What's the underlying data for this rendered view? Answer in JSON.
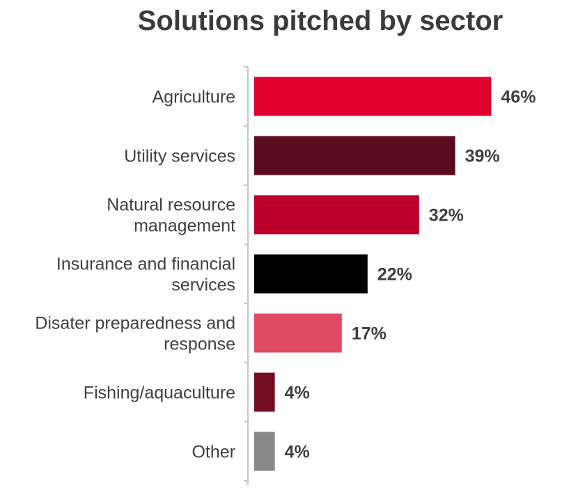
{
  "chart_data": {
    "type": "bar",
    "orientation": "horizontal",
    "title": "Solutions pitched by sector",
    "xlabel": "",
    "ylabel": "",
    "xlim": [
      0,
      50
    ],
    "grid": false,
    "legend": "none",
    "categories": [
      [
        "Agriculture"
      ],
      [
        "Utility services"
      ],
      [
        "Natural resource",
        "management"
      ],
      [
        "Insurance and financial",
        "services"
      ],
      [
        "Disater preparedness and",
        "response"
      ],
      [
        "Fishing/aquaculture"
      ],
      [
        "Other"
      ]
    ],
    "values": [
      46,
      39,
      32,
      22,
      17,
      4,
      4
    ],
    "value_labels": [
      "46%",
      "39%",
      "32%",
      "22%",
      "17%",
      "4%",
      "4%"
    ],
    "colors": [
      "#df002c",
      "#5c0a1e",
      "#bb0029",
      "#000000",
      "#df4b60",
      "#740c22",
      "#888888"
    ]
  }
}
